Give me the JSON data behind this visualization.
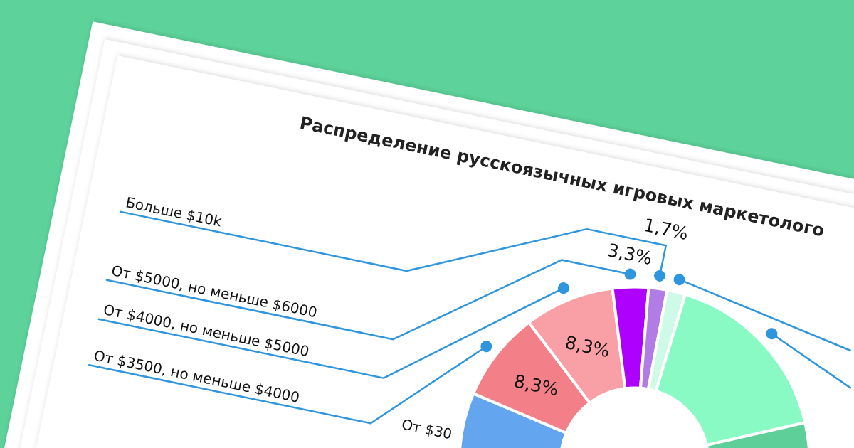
{
  "chart_data": {
    "type": "donut",
    "title": "Распределение русскоязычных игровых маркетолого",
    "categories": [
      "От $30",
      "От $3500, но меньше $4000",
      "От $4000, но меньше $5000",
      "От $5000, но меньше $6000",
      "Больше $10k",
      null,
      null,
      null
    ],
    "values": [
      30,
      8.3,
      8.3,
      3.3,
      1.7,
      1.7,
      16.7,
      30
    ],
    "colors": [
      "#64a5f0",
      "#f38089",
      "#f8a0a6",
      "#ae00fd",
      "#b27ce6",
      "#d0fae8",
      "#8afac4",
      "#5ecf99"
    ],
    "value_labels": [
      null,
      "8,3%",
      "8,3%",
      "3,3%",
      "1,7%",
      null,
      null,
      null
    ]
  }
}
